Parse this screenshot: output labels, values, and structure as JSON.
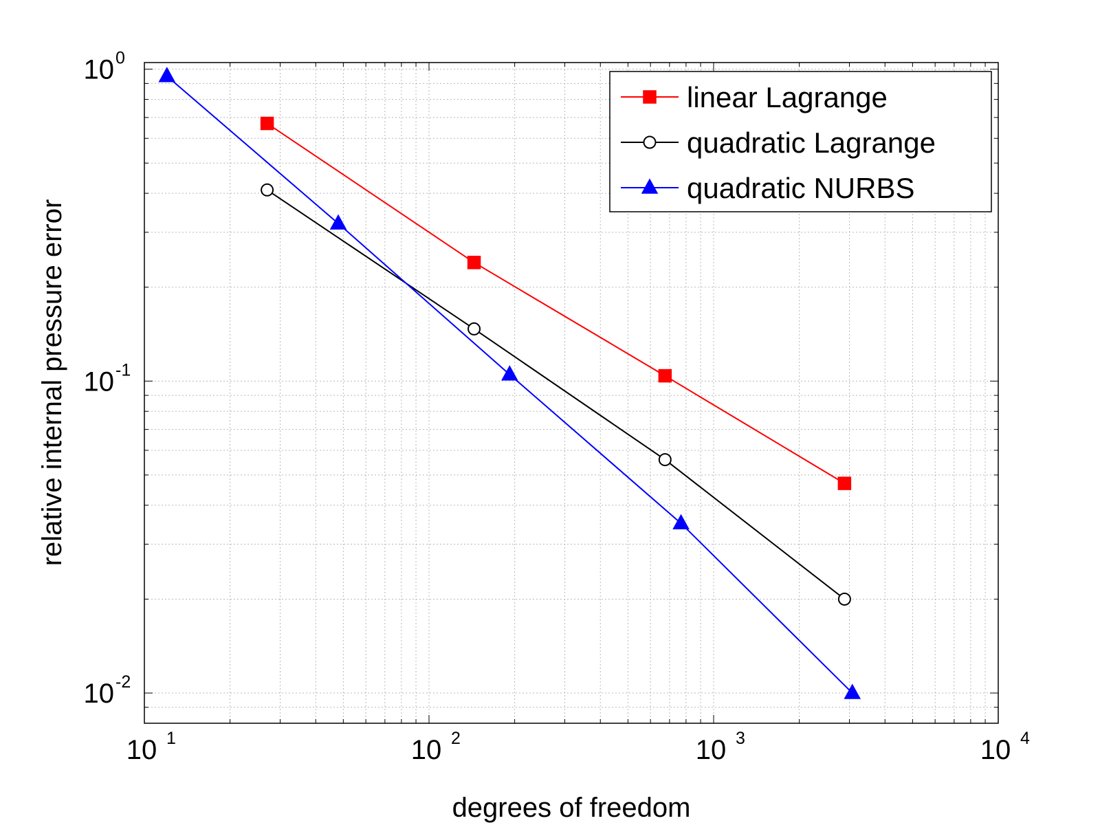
{
  "chart_data": {
    "type": "line",
    "xscale": "log",
    "yscale": "log",
    "title": "",
    "xlabel": "degrees of freedom",
    "ylabel": "relative internal pressure error",
    "xlim": [
      10,
      10000
    ],
    "ylim": [
      0.008,
      1.05
    ],
    "grid": true,
    "legend_position": "top-right",
    "x_ticks": [
      {
        "value": 10,
        "base": "10",
        "exp": "1"
      },
      {
        "value": 100,
        "base": "10",
        "exp": "2"
      },
      {
        "value": 1000,
        "base": "10",
        "exp": "3"
      },
      {
        "value": 10000,
        "base": "10",
        "exp": "4"
      }
    ],
    "y_ticks": [
      {
        "value": 0.01,
        "base": "10",
        "exp": "-2"
      },
      {
        "value": 0.1,
        "base": "10",
        "exp": "-1"
      },
      {
        "value": 1,
        "base": "10",
        "exp": "0"
      }
    ],
    "series": [
      {
        "name": "linear Lagrange",
        "color": "#ff0000",
        "marker": "square",
        "x": [
          27,
          144,
          675,
          2883
        ],
        "y": [
          0.67,
          0.24,
          0.104,
          0.047
        ]
      },
      {
        "name": "quadratic Lagrange",
        "color": "#000000",
        "marker": "circle",
        "x": [
          27,
          144,
          675,
          2883
        ],
        "y": [
          0.41,
          0.147,
          0.056,
          0.02
        ]
      },
      {
        "name": "quadratic NURBS",
        "color": "#0000ff",
        "marker": "triangle",
        "x": [
          12,
          48,
          192,
          768,
          3072
        ],
        "y": [
          0.95,
          0.32,
          0.105,
          0.035,
          0.01
        ]
      }
    ]
  }
}
